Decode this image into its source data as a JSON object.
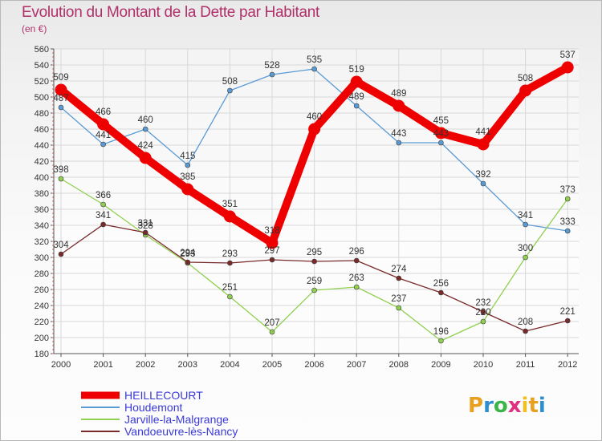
{
  "title": "Evolution du Montant de la Dette par Habitant",
  "subtitle": "(en €)",
  "logo_text": "Proxiti",
  "logo_colors": [
    "#e8a020",
    "#2e8fd0",
    "#3bb54a",
    "#e03080",
    "#f0c020",
    "#e8a020",
    "#2e8fd0"
  ],
  "chart_data": {
    "type": "line",
    "title": "Evolution du Montant de la Dette par Habitant",
    "subtitle": "(en €)",
    "xlabel": "",
    "ylabel": "",
    "x": [
      "2000",
      "2001",
      "2002",
      "2003",
      "2004",
      "2005",
      "2006",
      "2007",
      "2008",
      "2009",
      "2010",
      "2011",
      "2012"
    ],
    "ylim": [
      180,
      560
    ],
    "ytick_step": 20,
    "grid": true,
    "legend_position": "bottom-left",
    "series": [
      {
        "name": "HEILLECOURT",
        "color": "#ee0000",
        "values": [
          509,
          466,
          424,
          385,
          351,
          318,
          460,
          519,
          489,
          455,
          441,
          508,
          537
        ],
        "labels": [
          "509",
          "466",
          "424",
          "385",
          "351",
          "318",
          "460",
          "519",
          "489",
          "455",
          "441",
          "508",
          "537"
        ]
      },
      {
        "name": "Houdemont",
        "color": "#5b9bd5",
        "values": [
          487,
          441,
          460,
          415,
          508,
          528,
          535,
          489,
          443,
          443,
          392,
          341,
          333
        ],
        "labels": [
          "487",
          "441",
          "460",
          "415",
          "508",
          "528",
          "535",
          "489",
          "443",
          "443",
          "392",
          "341",
          "333"
        ]
      },
      {
        "name": "Jarville-la-Malgrange",
        "color": "#90d050",
        "values": [
          398,
          366,
          328,
          293,
          251,
          207,
          259,
          263,
          237,
          196,
          220,
          300,
          373
        ],
        "labels": [
          "398",
          "366",
          "328",
          "293",
          "251",
          "207",
          "259",
          "263",
          "237",
          "196",
          "220",
          "300",
          "373"
        ]
      },
      {
        "name": "Vandoeuvre-lès-Nancy",
        "color": "#7a2a2a",
        "values": [
          304,
          341,
          331,
          294,
          293,
          297,
          295,
          296,
          274,
          256,
          232,
          208,
          221
        ],
        "labels": [
          "304",
          "341",
          "331",
          "294",
          "293",
          "297",
          "295",
          "296",
          "274",
          "256",
          "232",
          "208",
          "221"
        ]
      }
    ]
  }
}
